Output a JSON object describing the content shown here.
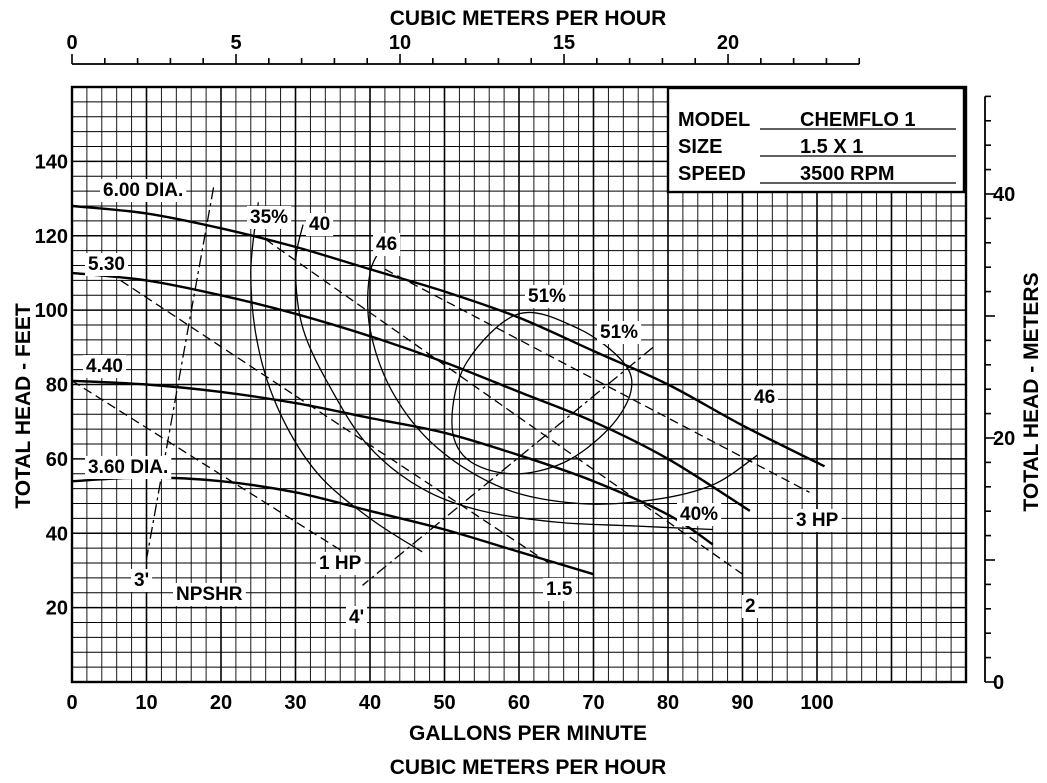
{
  "chart_data": {
    "type": "line",
    "title": "",
    "xlabel": "GALLONS PER MINUTE",
    "xlabel_secondary": "CUBIC METERS PER HOUR",
    "ylabel": "TOTAL HEAD - FEET",
    "ylabel_secondary": "TOTAL HEAD - METERS",
    "top_axis_title": "CUBIC METERS PER HOUR",
    "xlim": [
      0,
      120
    ],
    "ylim": [
      0,
      160
    ],
    "grid": true,
    "x_ticks": [
      0,
      10,
      20,
      30,
      40,
      50,
      60,
      70,
      80,
      90,
      100
    ],
    "y_ticks": [
      20,
      40,
      60,
      80,
      100,
      120,
      140
    ],
    "top_ticks": [
      0,
      5,
      10,
      15,
      20
    ],
    "right_ticks": [
      0,
      20,
      40
    ],
    "info_box": [
      {
        "key": "MODEL",
        "value": "CHEMFLO 1"
      },
      {
        "key": "SIZE",
        "value": "1.5 X 1"
      },
      {
        "key": "SPEED",
        "value": "3500 RPM"
      }
    ],
    "series": [
      {
        "name": "6.00 DIA.",
        "kind": "impeller",
        "x": [
          0,
          10,
          20,
          30,
          40,
          50,
          60,
          70,
          80,
          90,
          101
        ],
        "y": [
          128,
          126,
          122,
          117,
          111,
          105,
          98,
          89,
          80,
          69,
          58
        ]
      },
      {
        "name": "5.30",
        "kind": "impeller",
        "x": [
          0,
          10,
          20,
          30,
          40,
          50,
          60,
          70,
          80,
          91
        ],
        "y": [
          110,
          108,
          104,
          99,
          93,
          86,
          78,
          70,
          60,
          46
        ]
      },
      {
        "name": "4.40",
        "kind": "impeller",
        "x": [
          0,
          10,
          20,
          30,
          40,
          50,
          60,
          70,
          80,
          86
        ],
        "y": [
          81,
          80,
          78,
          75,
          71,
          67,
          61,
          54,
          45,
          37
        ]
      },
      {
        "name": "3.60 DIA.",
        "kind": "impeller",
        "x": [
          0,
          10,
          20,
          30,
          40,
          50,
          60,
          70
        ],
        "y": [
          54,
          55,
          54,
          51,
          46,
          41,
          35,
          29
        ]
      }
    ],
    "efficiency_labels": [
      "35%",
      "40",
      "46",
      "51%",
      "51%",
      "46",
      "40%"
    ],
    "efficiency_curves": [
      {
        "name": "35%",
        "x": [
          25,
          24,
          25,
          28,
          33,
          40,
          47
        ],
        "y": [
          129,
          110,
          90,
          72,
          56,
          44,
          35
        ]
      },
      {
        "name": "40",
        "x": [
          31,
          30,
          31,
          35,
          40,
          47,
          55,
          65,
          75,
          86
        ],
        "y": [
          123,
          112,
          95,
          78,
          63,
          52,
          46,
          43,
          42,
          41
        ]
      },
      {
        "name": "46",
        "x": [
          42,
          40,
          40,
          43,
          49,
          58,
          68,
          78,
          86,
          92
        ],
        "y": [
          118,
          110,
          95,
          78,
          63,
          52,
          48,
          49,
          53,
          61
        ]
      },
      {
        "name": "51%",
        "x": [
          60,
          68,
          74,
          75,
          72,
          66,
          59,
          53,
          51,
          53,
          60
        ],
        "y": [
          99,
          95,
          86,
          78,
          68,
          59,
          56,
          60,
          70,
          86,
          99
        ]
      }
    ],
    "horsepower_lines": [
      {
        "name": "1 HP",
        "x": [
          0,
          38
        ],
        "y": [
          81,
          33
        ]
      },
      {
        "name": "1.5",
        "x": [
          5,
          64
        ],
        "y": [
          110,
          32
        ]
      },
      {
        "name": "2",
        "x": [
          26,
          90
        ],
        "y": [
          119,
          29
        ]
      },
      {
        "name": "3 HP",
        "x": [
          42,
          99
        ],
        "y": [
          111,
          51
        ]
      }
    ],
    "npshr_label": "NPSHR",
    "npshr_lines": [
      {
        "name": "3'",
        "x": [
          19,
          10
        ],
        "y": [
          133,
          33
        ]
      },
      {
        "name": "4'",
        "x": [
          78,
          39
        ],
        "y": [
          90,
          26
        ]
      }
    ]
  }
}
